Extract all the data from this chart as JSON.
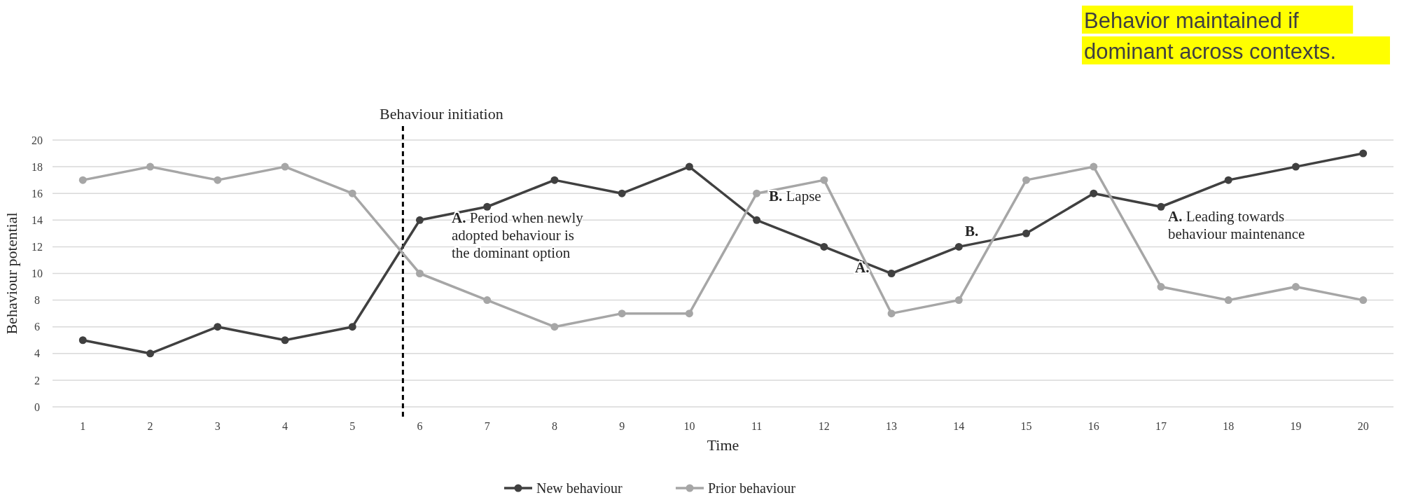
{
  "chart_data": {
    "type": "line",
    "xlabel": "Time",
    "ylabel": "Behaviour potential",
    "x": [
      1,
      2,
      3,
      4,
      5,
      6,
      7,
      8,
      9,
      10,
      11,
      12,
      13,
      14,
      15,
      16,
      17,
      18,
      19,
      20
    ],
    "xlim": [
      0.55,
      20.45
    ],
    "xticks": [
      1,
      2,
      3,
      4,
      5,
      6,
      7,
      8,
      9,
      10,
      11,
      12,
      13,
      14,
      15,
      16,
      17,
      18,
      19,
      20
    ],
    "ylim": [
      0,
      20
    ],
    "yticks": [
      0,
      2,
      4,
      6,
      8,
      10,
      12,
      14,
      16,
      18,
      20
    ],
    "grid": "y",
    "legend": "bottom",
    "marker": "circle",
    "line_style": "solid",
    "series": [
      {
        "name": "New behaviour",
        "color": "#404040",
        "values": [
          5,
          4,
          6,
          5,
          6,
          14,
          15,
          17,
          16,
          18,
          14,
          12,
          10,
          12,
          13,
          16,
          15,
          17,
          18,
          19
        ]
      },
      {
        "name": "Prior behaviour",
        "color": "#a6a6a6",
        "values": [
          17,
          18,
          17,
          18,
          16,
          10,
          8,
          6,
          7,
          7,
          16,
          17,
          7,
          8,
          17,
          18,
          9,
          8,
          9,
          8
        ]
      }
    ],
    "ref_lines": [
      {
        "axis": "x",
        "value": 5.75,
        "label": "Behaviour initiation",
        "line_style": "dashed",
        "color": "#000000"
      }
    ],
    "annotations": [
      "A. Period when newly adopted behaviour is the dominant option",
      "B. Lapse",
      "A.",
      "B.",
      "A. Leading towards behaviour maintenance",
      "Behavior maintained if dominant across contexts."
    ]
  }
}
